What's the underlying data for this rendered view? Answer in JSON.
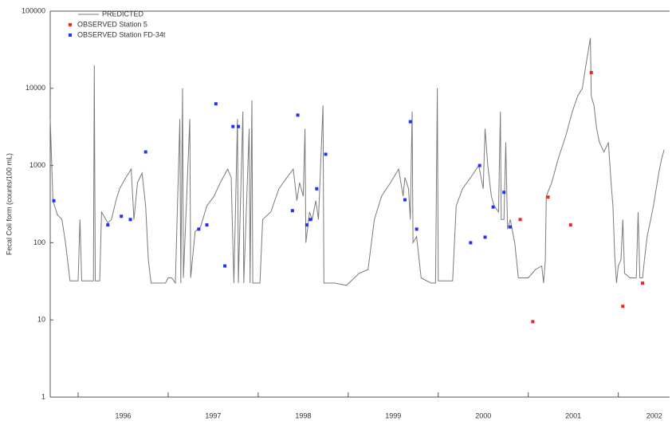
{
  "chart_data": {
    "type": "line",
    "y_label": "Fecal Coli form (counts/100 mL)",
    "ylog": true,
    "ylim": [
      1,
      100000
    ],
    "yticks": [
      1,
      10,
      100,
      1000,
      10000,
      100000
    ],
    "xlim": [
      1995.69,
      2002.57
    ],
    "xticks": [
      {
        "value": 1996.5,
        "label": "1996"
      },
      {
        "value": 1997.5,
        "label": "1997"
      },
      {
        "value": 1998.5,
        "label": "1998"
      },
      {
        "value": 1999.5,
        "label": "1999"
      },
      {
        "value": 2000.5,
        "label": "2000"
      },
      {
        "value": 2001.5,
        "label": "2001"
      },
      {
        "value": 2002.4,
        "label": "2002"
      }
    ],
    "x_tick_marks": [
      1996,
      1997,
      1998,
      1999,
      2000,
      2001,
      2002
    ],
    "legend": "top-left",
    "series": [
      {
        "name": "PREDICTED",
        "kind": "line",
        "color": "#7a7a7a",
        "x": [
          1995.69,
          1995.72,
          1995.77,
          1995.82,
          1995.86,
          1995.91,
          1996.0,
          1996.02,
          1996.04,
          1996.12,
          1996.17,
          1996.18,
          1996.19,
          1996.24,
          1996.26,
          1996.33,
          1996.37,
          1996.42,
          1996.46,
          1996.53,
          1996.59,
          1996.62,
          1996.66,
          1996.71,
          1996.75,
          1996.78,
          1996.81,
          1996.9,
          1996.97,
          1997.0,
          1997.04,
          1997.08,
          1997.13,
          1997.14,
          1997.16,
          1997.17,
          1997.24,
          1997.25,
          1997.3,
          1997.36,
          1997.43,
          1997.51,
          1997.58,
          1997.66,
          1997.7,
          1997.73,
          1997.77,
          1997.78,
          1997.83,
          1997.84,
          1997.9,
          1997.91,
          1997.93,
          1997.94,
          1997.98,
          1998.02,
          1998.05,
          1998.14,
          1998.23,
          1998.32,
          1998.39,
          1998.43,
          1998.46,
          1998.5,
          1998.52,
          1998.53,
          1998.57,
          1998.6,
          1998.64,
          1998.67,
          1998.72,
          1998.73,
          1998.85,
          1998.98,
          1999.12,
          1999.22,
          1999.29,
          1999.37,
          1999.47,
          1999.56,
          1999.61,
          1999.63,
          1999.67,
          1999.69,
          1999.71,
          1999.72,
          1999.76,
          1999.81,
          1999.92,
          1999.97,
          1999.99,
          2000.0,
          2000.09,
          2000.16,
          2000.2,
          2000.27,
          2000.36,
          2000.45,
          2000.5,
          2000.52,
          2000.55,
          2000.59,
          2000.62,
          2000.67,
          2000.69,
          2000.7,
          2000.73,
          2000.75,
          2000.77,
          2000.8,
          2000.85,
          2000.89,
          2001.0,
          2001.08,
          2001.15,
          2001.17,
          2001.19,
          2001.2,
          2001.26,
          2001.33,
          2001.42,
          2001.49,
          2001.55,
          2001.6,
          2001.64,
          2001.69,
          2001.7,
          2001.73,
          2001.76,
          2001.79,
          2001.84,
          2001.89,
          2001.92,
          2001.94,
          2001.96,
          2001.98,
          2002.0,
          2002.03,
          2002.05,
          2002.07,
          2002.13,
          2002.2,
          2002.22,
          2002.24,
          2002.27,
          2002.29,
          2002.32,
          2002.36,
          2002.39,
          2002.45,
          2002.48,
          2002.51
        ],
        "values": [
          4000,
          350,
          230,
          200,
          100,
          32,
          32,
          200,
          32,
          32,
          32,
          20000,
          32,
          32,
          250,
          180,
          200,
          350,
          500,
          700,
          900,
          200,
          600,
          800,
          300,
          60,
          30,
          30,
          30,
          35,
          35,
          30,
          4000,
          30,
          10000,
          35,
          4000,
          35,
          140,
          160,
          300,
          400,
          600,
          900,
          700,
          30,
          4000,
          30,
          5000,
          30,
          3000,
          30,
          7000,
          30,
          30,
          30,
          200,
          250,
          500,
          700,
          900,
          350,
          600,
          400,
          3000,
          100,
          250,
          200,
          350,
          200,
          6000,
          30,
          30,
          28,
          40,
          45,
          200,
          400,
          600,
          900,
          400,
          700,
          500,
          200,
          5000,
          100,
          120,
          35,
          30,
          30,
          10000,
          32,
          32,
          32,
          300,
          500,
          700,
          1000,
          500,
          3000,
          1000,
          400,
          300,
          250,
          5000,
          200,
          200,
          2000,
          150,
          200,
          100,
          35,
          35,
          45,
          50,
          30,
          60,
          400,
          600,
          1200,
          2500,
          5000,
          8000,
          10000,
          20000,
          45000,
          8000,
          6000,
          3000,
          2000,
          1500,
          2000,
          600,
          300,
          70,
          30,
          50,
          60,
          200,
          40,
          35,
          35,
          250,
          35,
          35,
          60,
          120,
          200,
          300,
          800,
          1200,
          1600
        ]
      },
      {
        "name": "OBSERVED Station 5",
        "kind": "scatter",
        "color": "#ff2020",
        "x": [
          2000.91,
          2001.05,
          2001.22,
          2001.47,
          2001.7,
          2002.05,
          2002.27
        ],
        "values": [
          200,
          9.5,
          390,
          170,
          16000,
          15,
          30
        ]
      },
      {
        "name": "OBSERVED Station FD-34t",
        "kind": "scatter",
        "color": "#2030ff",
        "x": [
          1995.73,
          1996.33,
          1996.48,
          1996.58,
          1996.75,
          1997.34,
          1997.43,
          1997.53,
          1997.63,
          1997.72,
          1997.78,
          1998.38,
          1998.44,
          1998.54,
          1998.58,
          1998.65,
          1998.75,
          1999.63,
          1999.69,
          1999.76,
          2000.36,
          2000.46,
          2000.52,
          2000.61,
          2000.73,
          2000.8
        ],
        "values": [
          350,
          170,
          220,
          200,
          1500,
          150,
          170,
          6300,
          50,
          3200,
          3200,
          260,
          4500,
          170,
          200,
          500,
          1400,
          360,
          3700,
          150,
          100,
          1000,
          118,
          290,
          450,
          160
        ]
      }
    ]
  }
}
